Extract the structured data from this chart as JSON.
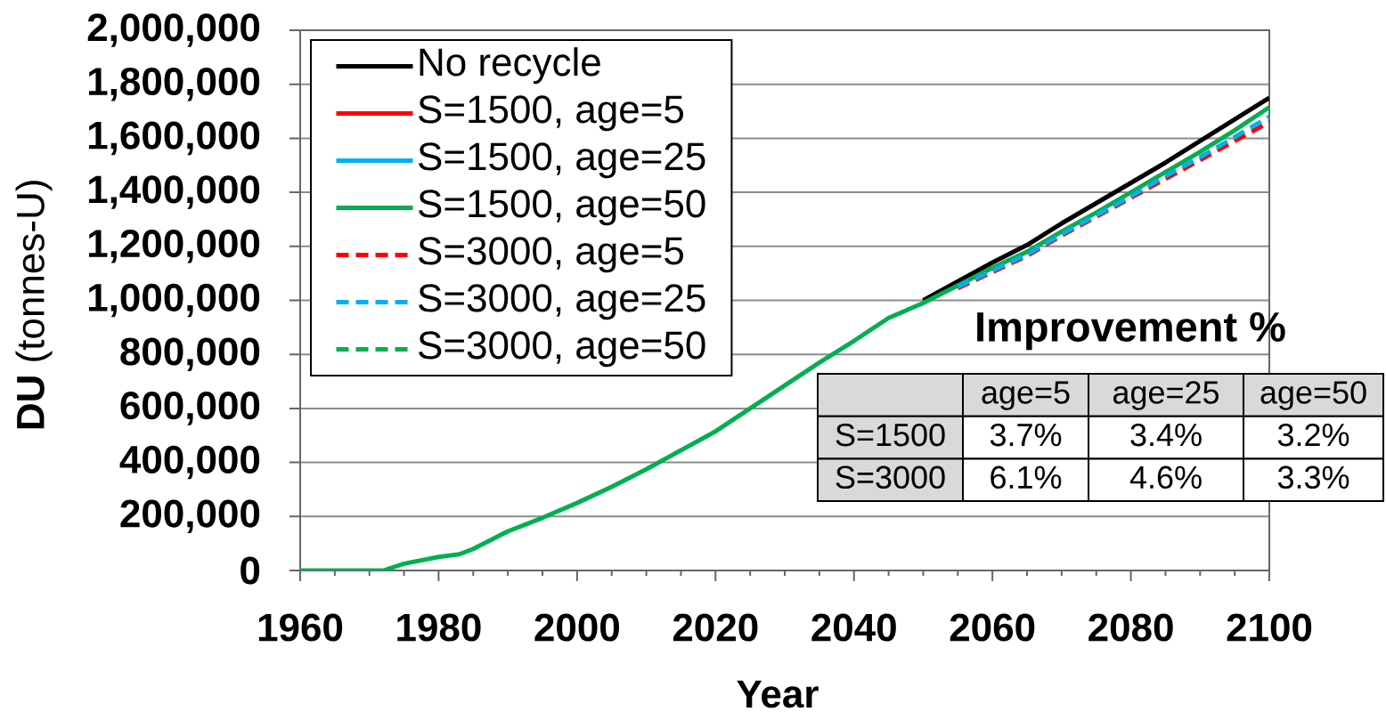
{
  "chart_data": {
    "type": "line",
    "xlabel": "Year",
    "ylabel": "**DU** (tonnes-U)",
    "x": [
      1960,
      1965,
      1970,
      1972,
      1975,
      1980,
      1983,
      1985,
      1990,
      1995,
      2000,
      2005,
      2010,
      2015,
      2020,
      2025,
      2030,
      2035,
      2040,
      2045,
      2050,
      2055,
      2060,
      2065,
      2070,
      2075,
      2080,
      2085,
      2090,
      2095,
      2100
    ],
    "xlim": [
      1960,
      2100
    ],
    "ylim": [
      0,
      2000000
    ],
    "xticks": [
      1960,
      1980,
      2000,
      2020,
      2040,
      2060,
      2080,
      2100
    ],
    "yticks": [
      0,
      {
        "value": 200000,
        "label": "200,000"
      },
      {
        "value": 400000,
        "label": "400,000"
      },
      {
        "value": 600000,
        "label": "600,000"
      },
      {
        "value": 800000,
        "label": "800,000"
      },
      {
        "value": 1000000,
        "label": "1,000,000"
      },
      {
        "value": 1200000,
        "label": "1,200,000"
      },
      {
        "value": 1400000,
        "label": "1,400,000"
      },
      {
        "value": 1600000,
        "label": "1,600,000"
      },
      {
        "value": 1800000,
        "label": "1,800,000"
      },
      {
        "value": 2000000,
        "label": "2,000,000"
      }
    ],
    "grid": "y",
    "legend": "top left",
    "series": [
      {
        "name": "No recycle",
        "color": "#000000",
        "line_style": "solid",
        "values": [
          null,
          null,
          null,
          null,
          null,
          null,
          null,
          null,
          null,
          null,
          null,
          null,
          null,
          null,
          null,
          null,
          null,
          null,
          null,
          null,
          1000000,
          1070000,
          1140000,
          1205000,
          1285000,
          1360000,
          1435000,
          1510000,
          1590000,
          1670000,
          1750000
        ]
      },
      {
        "name": "S=1500, age=5",
        "color": "#ff0000",
        "line_style": "solid",
        "values": [
          null,
          null,
          null,
          null,
          null,
          null,
          null,
          null,
          null,
          null,
          null,
          null,
          null,
          null,
          null,
          null,
          null,
          null,
          null,
          null,
          null,
          null,
          null,
          null,
          null,
          null,
          null,
          null,
          null,
          null,
          null
        ]
      },
      {
        "name": "S=1500, age=25",
        "color": "#00b0f0",
        "line_style": "solid",
        "values": [
          null,
          null,
          null,
          null,
          null,
          null,
          null,
          null,
          null,
          null,
          null,
          null,
          null,
          null,
          null,
          null,
          null,
          null,
          null,
          null,
          null,
          null,
          null,
          null,
          null,
          null,
          null,
          null,
          null,
          null,
          null
        ]
      },
      {
        "name": "S=1500, age=50",
        "color": "#00b050",
        "line_style": "solid",
        "values": [
          0,
          0,
          0,
          0,
          25000,
          50000,
          60000,
          80000,
          145000,
          195000,
          250000,
          310000,
          375000,
          445000,
          515000,
          600000,
          685000,
          770000,
          850000,
          935000,
          990000,
          1055000,
          1120000,
          1180000,
          1255000,
          1325000,
          1400000,
          1475000,
          1550000,
          1630000,
          1715000
        ]
      },
      {
        "name": "S=3000, age=5",
        "color": "#ff0000",
        "line_style": "dashed",
        "values": [
          null,
          null,
          null,
          null,
          null,
          null,
          null,
          null,
          null,
          null,
          null,
          null,
          null,
          null,
          null,
          null,
          null,
          null,
          null,
          null,
          null,
          1045000,
          1105000,
          1165000,
          1240000,
          1310000,
          1380000,
          1450000,
          1520000,
          1590000,
          1660000
        ]
      },
      {
        "name": "S=3000, age=25",
        "color": "#00b0f0",
        "line_style": "dashed",
        "values": [
          null,
          null,
          null,
          null,
          null,
          null,
          null,
          null,
          null,
          null,
          null,
          null,
          null,
          null,
          null,
          null,
          null,
          null,
          null,
          null,
          null,
          1050000,
          1110000,
          1170000,
          1245000,
          1315000,
          1385000,
          1460000,
          1530000,
          1605000,
          1680000
        ]
      },
      {
        "name": "S=3000, age=50",
        "color": "#00b050",
        "line_style": "dashed",
        "values": [
          null,
          null,
          null,
          null,
          null,
          null,
          null,
          null,
          null,
          null,
          null,
          null,
          null,
          null,
          null,
          null,
          null,
          null,
          null,
          null,
          null,
          null,
          null,
          null,
          null,
          null,
          null,
          null,
          null,
          null,
          null
        ]
      }
    ],
    "annotations": [
      "Improvement %",
      "age=5",
      "age=25",
      "age=50",
      "S=1500",
      "3.7%",
      "3.4%",
      "3.2%",
      "S=3000",
      "6.1%",
      "4.6%",
      "3.3%"
    ]
  }
}
